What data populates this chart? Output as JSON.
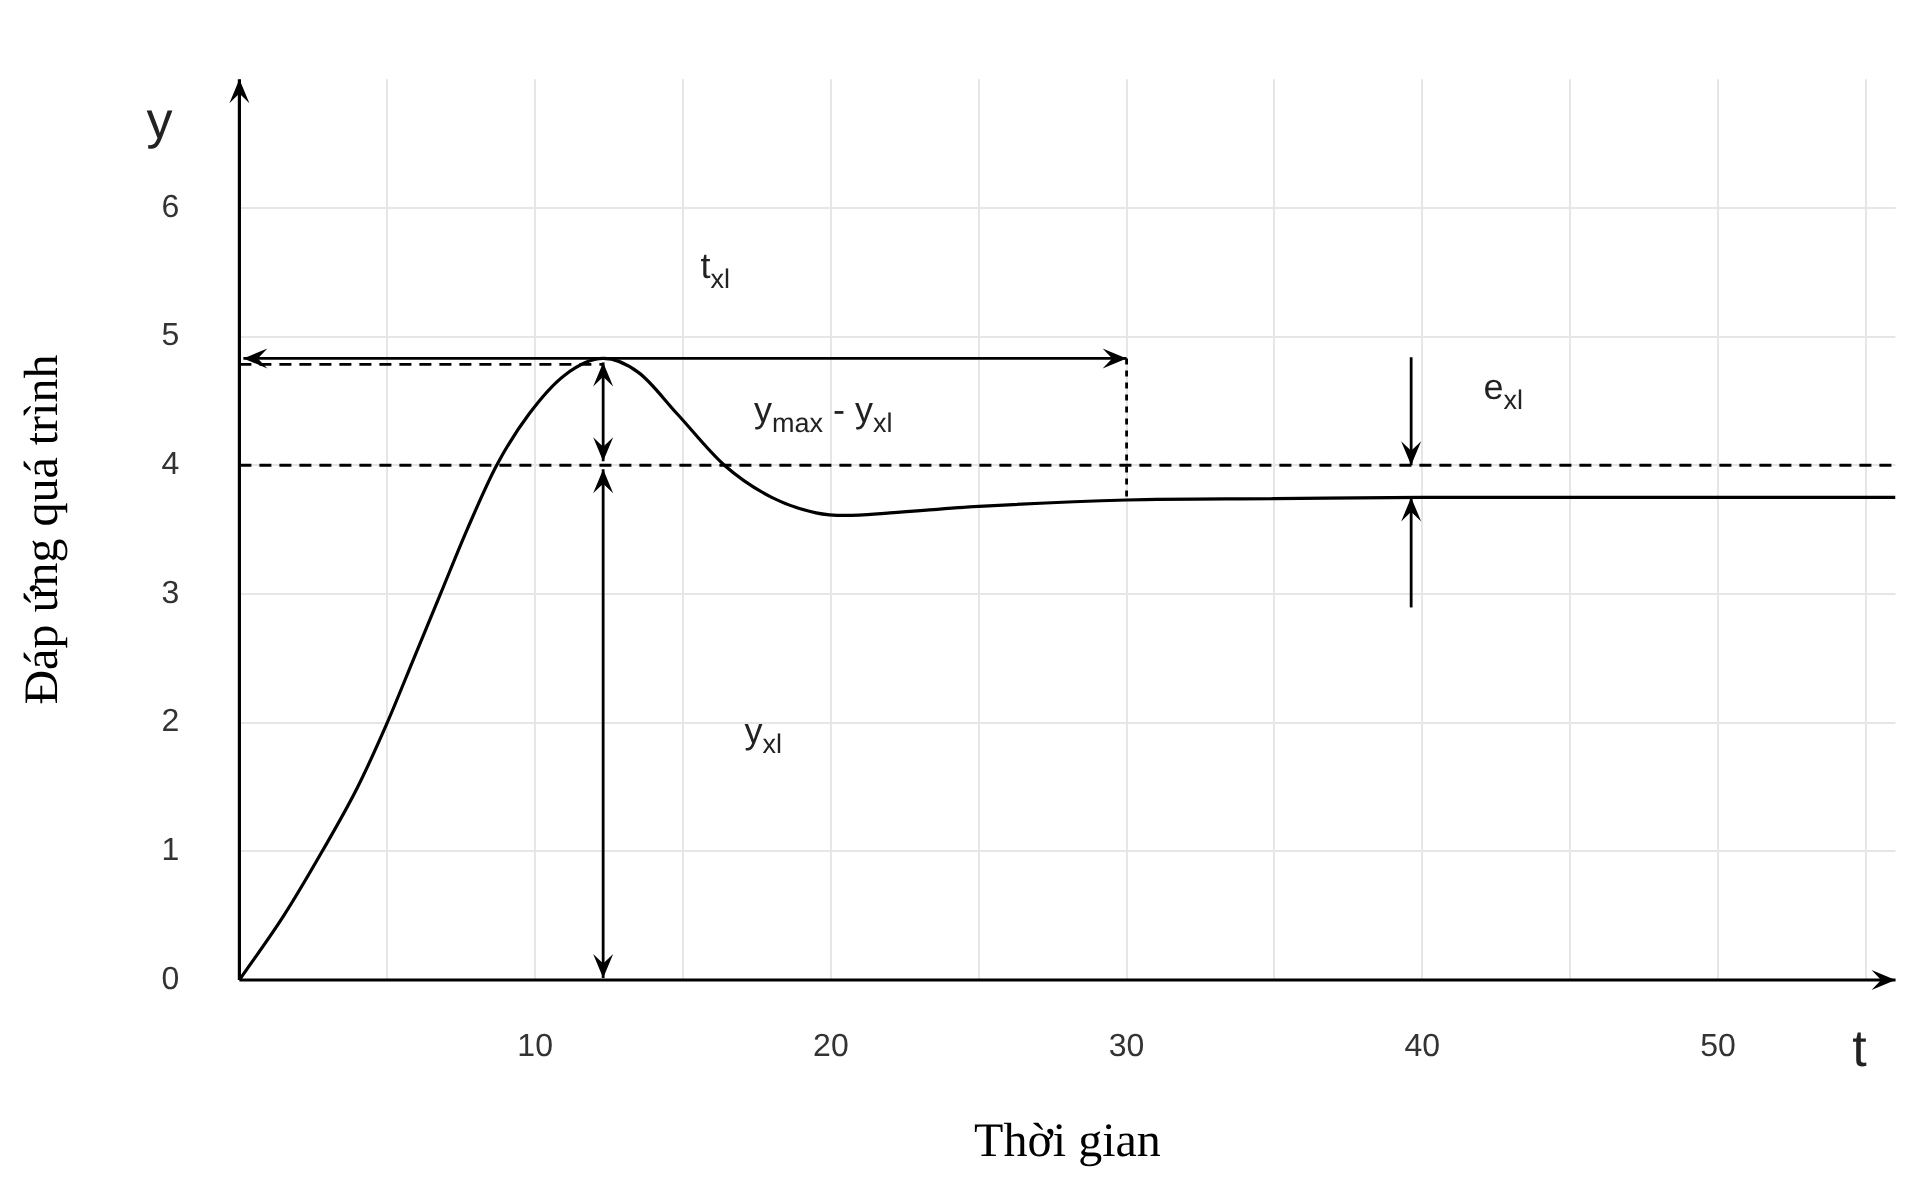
{
  "chart_data": {
    "type": "line",
    "xlabel": "Thời gian",
    "ylabel": "Đáp ứng quá trình",
    "x": [
      0,
      1.5,
      2.8,
      4,
      5,
      5.9,
      6.8,
      7.7,
      8.7,
      9.8,
      11,
      12.3,
      13.5,
      14.8,
      16.4,
      18,
      19.5,
      20.5,
      22,
      25,
      30,
      35,
      40,
      56
    ],
    "series": [
      {
        "color": "#000000",
        "values": [
          0,
          0.5,
          1,
          1.5,
          2,
          2.5,
          3,
          3.5,
          4,
          4.4,
          4.7,
          4.83,
          4.72,
          4.4,
          4,
          3.75,
          3.63,
          3.61,
          3.63,
          3.68,
          3.73,
          3.74,
          3.75,
          3.75
        ]
      }
    ],
    "xlim": [
      0,
      56
    ],
    "ylim": [
      0,
      7
    ],
    "xticks": [
      {
        "value": 5,
        "label": null
      },
      10,
      {
        "value": 15,
        "label": null
      },
      20,
      {
        "value": 25,
        "label": null
      },
      30,
      {
        "value": 35,
        "label": null
      },
      40,
      {
        "value": 45,
        "label": null
      },
      50,
      {
        "value": 55,
        "label": null
      }
    ],
    "yticks": [
      0,
      1,
      2,
      3,
      4,
      5,
      6
    ],
    "grid": true,
    "legend": false,
    "marker": "none",
    "line_style": "solid",
    "ref_lines": [
      {
        "axis": "y",
        "value": 4,
        "line_style": "dashed"
      },
      {
        "axis": "x",
        "value": 30,
        "line_style": "dotted"
      }
    ],
    "annotations": [
      "y",
      "t",
      "t$_{xl}$",
      "y$_{max}$ - y$_{xl}$",
      "y$_{xl}$",
      "e$_{xl}$"
    ]
  }
}
